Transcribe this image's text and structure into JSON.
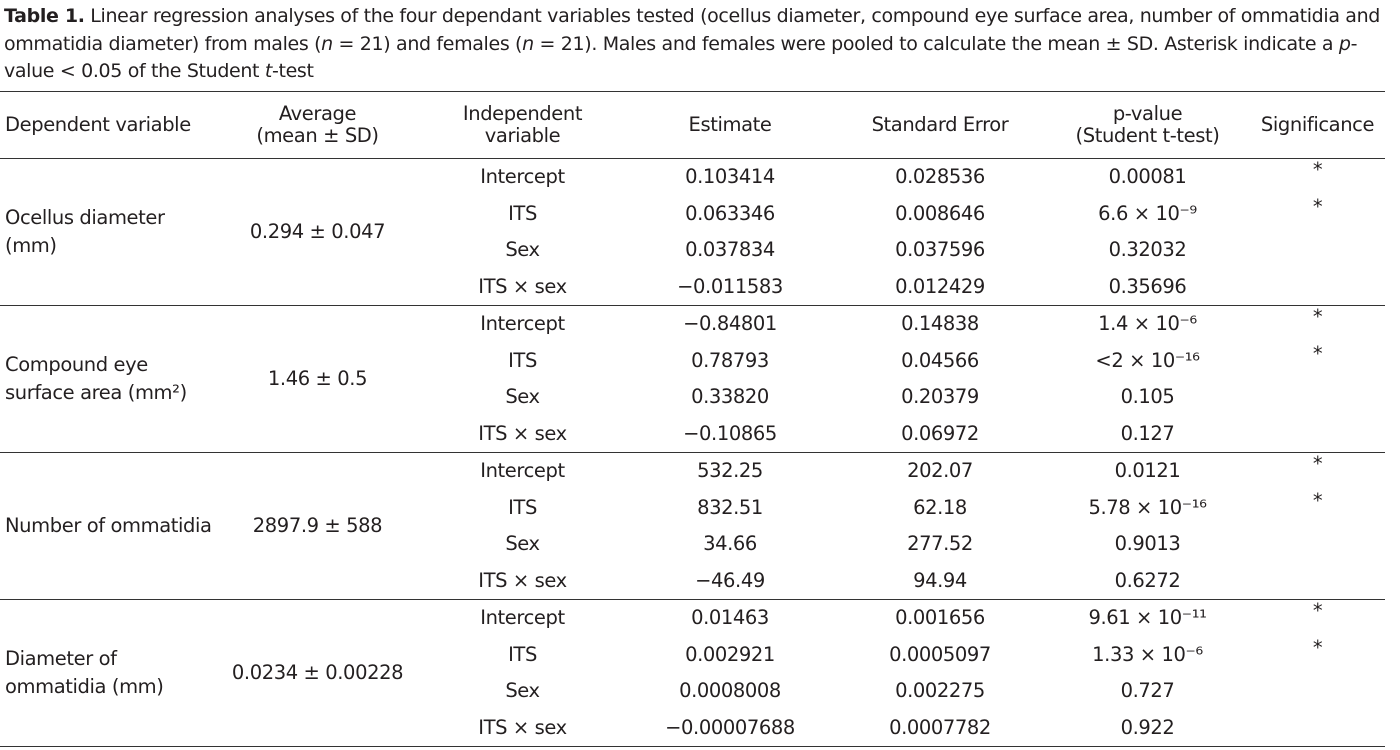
{
  "caption": {
    "parts": [
      "Table 1.",
      " Linear regression analyses of the four dependant variables tested (ocellus diameter, compound eye surface area, number of ommatidia and ommatidia diameter) from males (",
      "n",
      " = 21) and females (",
      "n",
      " = 21). Males and females were pooled to calculate the mean ± SD. Asterisk indicate a ",
      "p",
      "-value < 0.05 of the Student ",
      "t",
      "-test"
    ]
  },
  "table": {
    "header": [
      [
        "Dependent variable"
      ],
      [
        "Average",
        "(mean ± SD)"
      ],
      [
        "Independent",
        "variable"
      ],
      [
        "Estimate"
      ],
      [
        "Standard Error"
      ],
      [
        "p-value",
        "(Student t-test)"
      ],
      [
        "Significance"
      ]
    ],
    "groups": [
      {
        "dependent": [
          "Ocellus diameter",
          "(mm)"
        ],
        "average": "0.294 ± 0.047",
        "rows": [
          [
            "Intercept",
            "0.103414",
            "0.028536",
            "0.00081",
            "*"
          ],
          [
            "ITS",
            "0.063346",
            "0.008646",
            "6.6 × 10⁻⁹",
            "*"
          ],
          [
            "Sex",
            "0.037834",
            "0.037596",
            "0.32032",
            null
          ],
          [
            "ITS × sex",
            "−0.011583",
            "0.012429",
            "0.35696",
            null
          ]
        ]
      },
      {
        "dependent": [
          "Compound eye",
          "surface area (mm²)"
        ],
        "average": "1.46 ± 0.5",
        "rows": [
          [
            "Intercept",
            "−0.84801",
            "0.14838",
            "1.4 × 10⁻⁶",
            "*"
          ],
          [
            "ITS",
            "0.78793",
            "0.04566",
            "<2 × 10⁻¹⁶",
            "*"
          ],
          [
            "Sex",
            "0.33820",
            "0.20379",
            "0.105",
            null
          ],
          [
            "ITS × sex",
            "−0.10865",
            "0.06972",
            "0.127",
            null
          ]
        ]
      },
      {
        "dependent": [
          "Number of ommatidia"
        ],
        "average": "2897.9 ± 588",
        "rows": [
          [
            "Intercept",
            "532.25",
            "202.07",
            "0.0121",
            "*"
          ],
          [
            "ITS",
            "832.51",
            "62.18",
            "5.78 × 10⁻¹⁶",
            "*"
          ],
          [
            "Sex",
            "34.66",
            "277.52",
            "0.9013",
            null
          ],
          [
            "ITS × sex",
            "−46.49",
            "94.94",
            "0.6272",
            null
          ]
        ]
      },
      {
        "dependent": [
          "Diameter of",
          "ommatidia (mm)"
        ],
        "average": "0.0234 ± 0.00228",
        "rows": [
          [
            "Intercept",
            "0.01463",
            "0.001656",
            "9.61 × 10⁻¹¹",
            "*"
          ],
          [
            "ITS",
            "0.002921",
            "0.0005097",
            "1.33 × 10⁻⁶",
            "*"
          ],
          [
            "Sex",
            "0.0008008",
            "0.002275",
            "0.727",
            null
          ],
          [
            "ITS × sex",
            "−0.00007688",
            "0.0007782",
            "0.922",
            null
          ]
        ]
      }
    ]
  }
}
